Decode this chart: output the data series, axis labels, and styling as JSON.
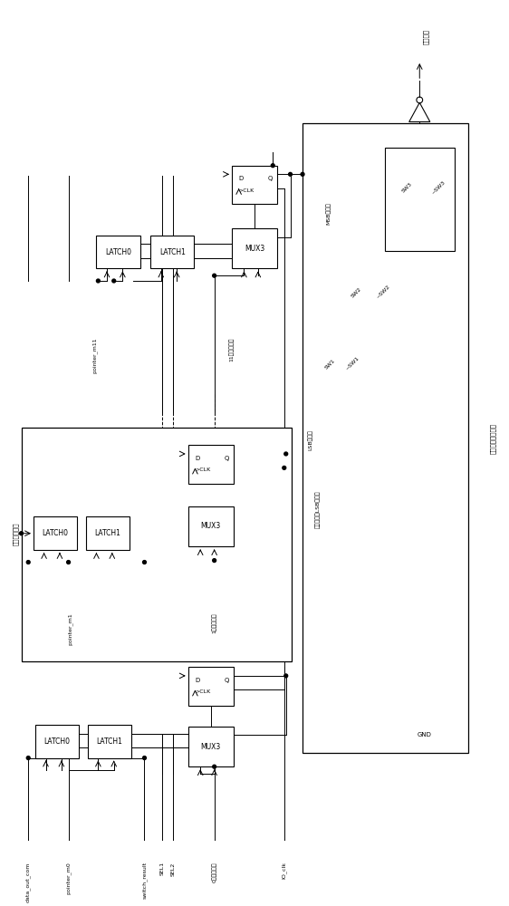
{
  "bg_color": "#ffffff",
  "fig_width": 5.62,
  "fig_height": 10.0,
  "dpi": 100,
  "labels": {
    "data_out_com": "data_out_com",
    "pointer_m0": "pointer_m0",
    "switch_result": "switch_result",
    "SEL1": "SEL1",
    "SEL2": "SEL2",
    "comp0": "0级比较结果",
    "IO_clk": "IO_clk",
    "pointer_m1": "pointer_m1",
    "comp1": "1级比较结果",
    "jijian": "级间重复单元",
    "pointer_m11": "pointer_m11",
    "comp11": "11级比较结果",
    "LSB_out": "LSB输出端",
    "mid_out": "中间位数、LSB输出端",
    "MSB_out": "MSB输出端",
    "SW1": "SW1",
    "SW1n": "~SW1",
    "SW2": "SW2",
    "SW2n": "~SW2",
    "SW3": "SW3",
    "SW3n": "~SW3",
    "GND": "GND",
    "result_out": "结果输出",
    "data_channel": "数据输出通路选择"
  }
}
